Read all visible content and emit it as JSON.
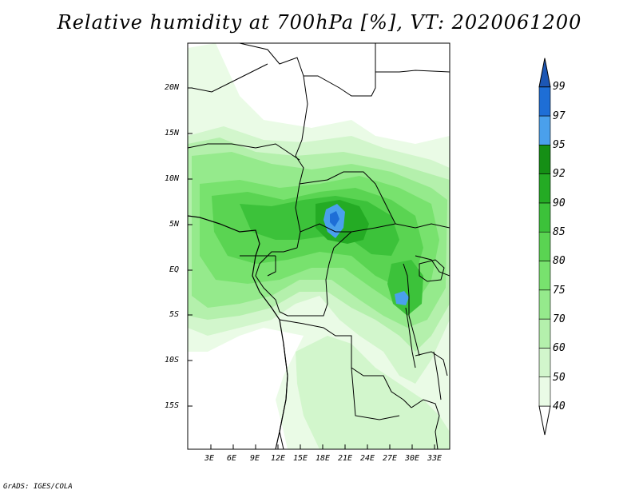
{
  "title": "Relative humidity at 700hPa [%], VT: 2020061200",
  "credit": "GrADS: IGES/COLA",
  "map": {
    "lat_labels": [
      "20N",
      "15N",
      "10N",
      "5N",
      "EQ",
      "5S",
      "10S",
      "15S"
    ],
    "lon_labels": [
      "3E",
      "6E",
      "9E",
      "12E",
      "15E",
      "18E",
      "21E",
      "24E",
      "27E",
      "30E",
      "33E"
    ]
  },
  "colorbar": {
    "labels": [
      "40",
      "50",
      "60",
      "70",
      "75",
      "80",
      "85",
      "90",
      "92",
      "95",
      "97",
      "99"
    ],
    "colors": [
      "#ffffff",
      "#eafbe6",
      "#d2f6cc",
      "#b4f0ac",
      "#95ea8c",
      "#78e26e",
      "#5ad452",
      "#3cc23a",
      "#24ab24",
      "#158f15",
      "#4aa0ec",
      "#1e6ed6",
      "#1c56b4"
    ]
  }
}
